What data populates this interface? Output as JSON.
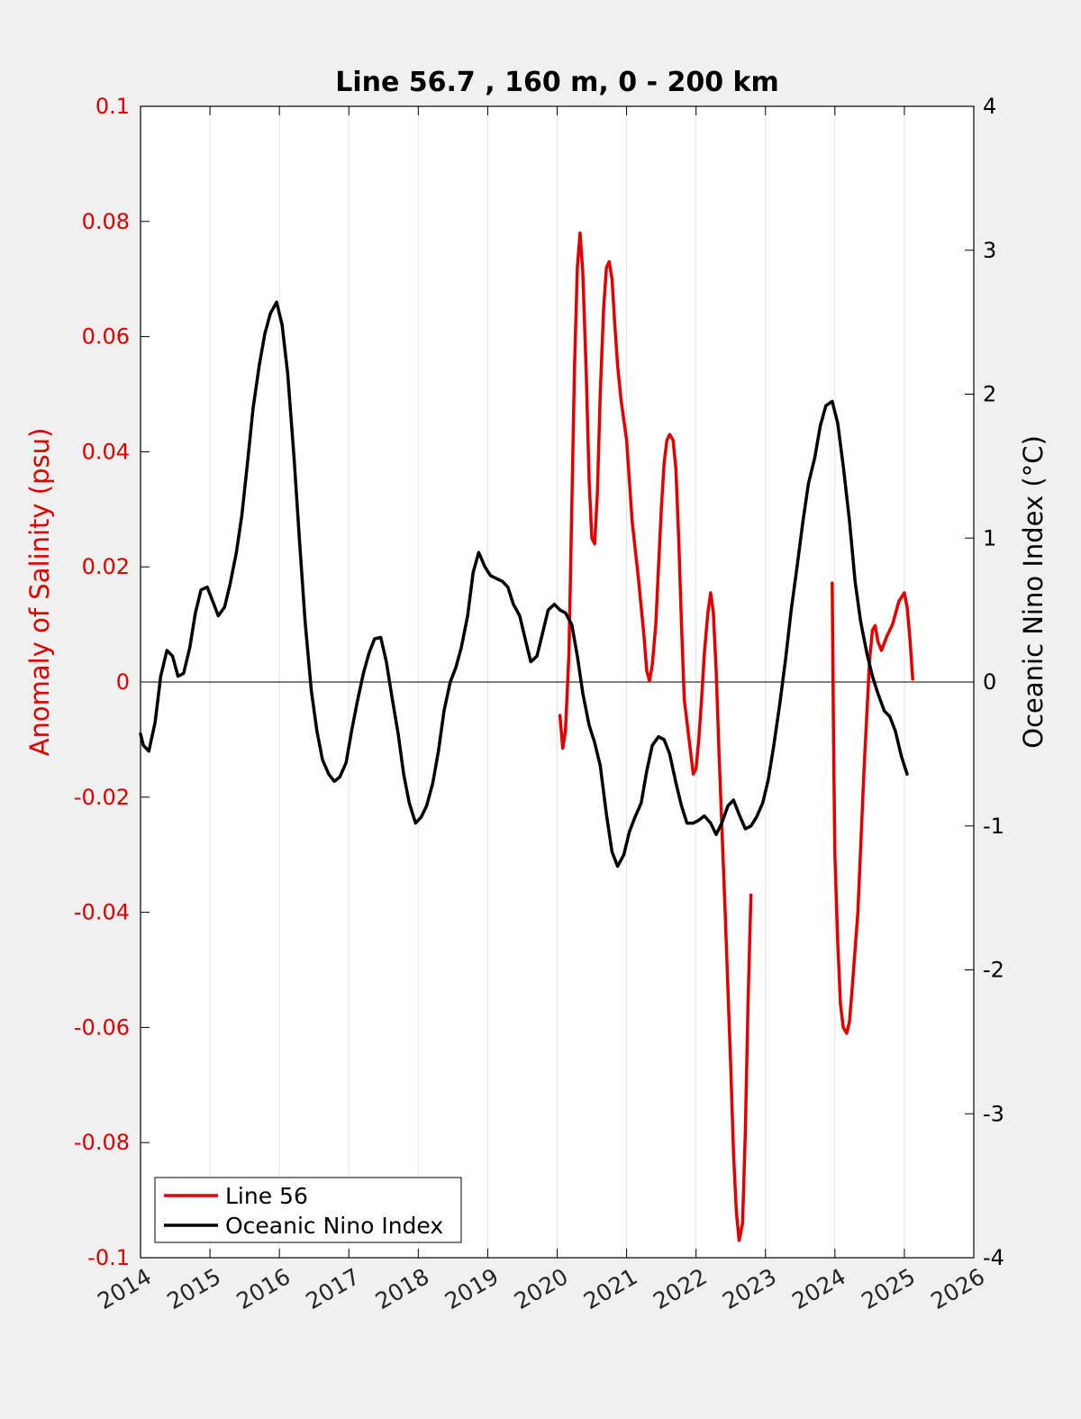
{
  "chart_data": {
    "type": "line",
    "title": "Line 56.7 , 160 m, 0 - 200 km",
    "xlim": [
      2014,
      2026
    ],
    "xticks": [
      2014,
      2015,
      2016,
      2017,
      2018,
      2019,
      2020,
      2021,
      2022,
      2023,
      2024,
      2025,
      2026
    ],
    "xtick_labels": [
      "2014",
      "2015",
      "2016",
      "2017",
      "2018",
      "2019",
      "2020",
      "2021",
      "2022",
      "2023",
      "2024",
      "2025",
      "2026"
    ],
    "ylabel_left": "Anomaly of Salinity (psu)",
    "ylim_left": [
      -0.1,
      0.1
    ],
    "yticks_left": [
      0.1,
      0.08,
      0.06,
      0.04,
      0.02,
      0,
      -0.02,
      -0.04,
      -0.06,
      -0.08,
      -0.1
    ],
    "ytick_labels_left": [
      "0.1",
      "0.08",
      "0.06",
      "0.04",
      "0.02",
      "0",
      "-0.02",
      "-0.04",
      "-0.06",
      "-0.08",
      "-0.1"
    ],
    "ylabel_right": "Oceanic Nino Index (°C)",
    "ylim_right": [
      -4,
      4
    ],
    "yticks_right": [
      4,
      3,
      2,
      1,
      0,
      -1,
      -2,
      -3,
      -4
    ],
    "ytick_labels_right": [
      "4",
      "3",
      "2",
      "1",
      "0",
      "-1",
      "-2",
      "-3",
      "-4"
    ],
    "x_grid": true,
    "y_grid": false,
    "zero_line": true,
    "legend_position": "bottom-left",
    "series": [
      {
        "name": "Line 56",
        "axis": "left",
        "color": "#e60000",
        "segments": [
          [
            [
              2020.04,
              -0.0058
            ],
            [
              2020.08,
              -0.0115
            ],
            [
              2020.12,
              -0.0085
            ],
            [
              2020.17,
              0.005
            ],
            [
              2020.21,
              0.03
            ],
            [
              2020.25,
              0.055
            ],
            [
              2020.29,
              0.072
            ],
            [
              2020.33,
              0.078
            ],
            [
              2020.37,
              0.071
            ],
            [
              2020.42,
              0.053
            ],
            [
              2020.46,
              0.035
            ],
            [
              2020.5,
              0.025
            ],
            [
              2020.54,
              0.024
            ],
            [
              2020.58,
              0.033
            ],
            [
              2020.62,
              0.05
            ],
            [
              2020.67,
              0.065
            ],
            [
              2020.71,
              0.072
            ],
            [
              2020.75,
              0.073
            ],
            [
              2020.79,
              0.07
            ],
            [
              2020.83,
              0.062
            ],
            [
              2020.87,
              0.055
            ],
            [
              2020.92,
              0.049
            ],
            [
              2021.0,
              0.042
            ],
            [
              2021.08,
              0.028
            ],
            [
              2021.17,
              0.018
            ],
            [
              2021.25,
              0.008
            ],
            [
              2021.29,
              0.002
            ],
            [
              2021.33,
              0.0002
            ],
            [
              2021.37,
              0.003
            ],
            [
              2021.42,
              0.01
            ],
            [
              2021.46,
              0.02
            ],
            [
              2021.5,
              0.03
            ],
            [
              2021.54,
              0.038
            ],
            [
              2021.58,
              0.042
            ],
            [
              2021.62,
              0.043
            ],
            [
              2021.67,
              0.042
            ],
            [
              2021.71,
              0.037
            ],
            [
              2021.75,
              0.025
            ],
            [
              2021.79,
              0.01
            ],
            [
              2021.83,
              -0.003
            ],
            [
              2021.92,
              -0.012
            ],
            [
              2021.96,
              -0.016
            ],
            [
              2022.0,
              -0.015
            ],
            [
              2022.04,
              -0.01
            ],
            [
              2022.08,
              -0.003
            ],
            [
              2022.12,
              0.005
            ],
            [
              2022.17,
              0.012
            ],
            [
              2022.21,
              0.0155
            ],
            [
              2022.25,
              0.012
            ],
            [
              2022.29,
              0.002
            ],
            [
              2022.33,
              -0.012
            ],
            [
              2022.42,
              -0.04
            ],
            [
              2022.5,
              -0.067
            ],
            [
              2022.54,
              -0.082
            ],
            [
              2022.58,
              -0.092
            ],
            [
              2022.62,
              -0.097
            ],
            [
              2022.67,
              -0.094
            ],
            [
              2022.71,
              -0.078
            ],
            [
              2022.75,
              -0.055
            ],
            [
              2022.79,
              -0.037
            ]
          ],
          [
            [
              2023.96,
              0.0172
            ],
            [
              2023.98,
              -0.01
            ],
            [
              2024.0,
              -0.03
            ],
            [
              2024.04,
              -0.045
            ],
            [
              2024.08,
              -0.056
            ],
            [
              2024.12,
              -0.06
            ],
            [
              2024.17,
              -0.061
            ],
            [
              2024.21,
              -0.059
            ],
            [
              2024.25,
              -0.053
            ],
            [
              2024.33,
              -0.04
            ],
            [
              2024.42,
              -0.015
            ],
            [
              2024.5,
              0.004
            ],
            [
              2024.54,
              0.009
            ],
            [
              2024.58,
              0.0098
            ],
            [
              2024.62,
              0.007
            ],
            [
              2024.67,
              0.0055
            ],
            [
              2024.75,
              0.008
            ],
            [
              2024.83,
              0.01
            ],
            [
              2024.92,
              0.014
            ],
            [
              2025.0,
              0.0155
            ],
            [
              2025.04,
              0.013
            ],
            [
              2025.08,
              0.0075
            ],
            [
              2025.12,
              0.0005
            ]
          ]
        ]
      },
      {
        "name": "Oceanic Nino Index",
        "axis": "right",
        "color": "#000000",
        "segments": [
          [
            [
              2014.0,
              -0.36
            ],
            [
              2014.04,
              -0.44
            ],
            [
              2014.12,
              -0.48
            ],
            [
              2014.21,
              -0.28
            ],
            [
              2014.29,
              0.04
            ],
            [
              2014.38,
              0.22
            ],
            [
              2014.46,
              0.18
            ],
            [
              2014.54,
              0.04
            ],
            [
              2014.62,
              0.06
            ],
            [
              2014.71,
              0.24
            ],
            [
              2014.79,
              0.48
            ],
            [
              2014.87,
              0.64
            ],
            [
              2014.96,
              0.66
            ],
            [
              2015.04,
              0.56
            ],
            [
              2015.12,
              0.46
            ],
            [
              2015.21,
              0.52
            ],
            [
              2015.29,
              0.68
            ],
            [
              2015.38,
              0.9
            ],
            [
              2015.46,
              1.16
            ],
            [
              2015.54,
              1.52
            ],
            [
              2015.62,
              1.9
            ],
            [
              2015.71,
              2.2
            ],
            [
              2015.79,
              2.42
            ],
            [
              2015.87,
              2.56
            ],
            [
              2015.96,
              2.64
            ],
            [
              2016.04,
              2.48
            ],
            [
              2016.12,
              2.14
            ],
            [
              2016.21,
              1.56
            ],
            [
              2016.29,
              0.98
            ],
            [
              2016.37,
              0.42
            ],
            [
              2016.46,
              -0.06
            ],
            [
              2016.54,
              -0.34
            ],
            [
              2016.62,
              -0.54
            ],
            [
              2016.71,
              -0.64
            ],
            [
              2016.79,
              -0.69
            ],
            [
              2016.87,
              -0.66
            ],
            [
              2016.96,
              -0.56
            ],
            [
              2017.04,
              -0.34
            ],
            [
              2017.12,
              -0.14
            ],
            [
              2017.21,
              0.06
            ],
            [
              2017.29,
              0.2
            ],
            [
              2017.37,
              0.3
            ],
            [
              2017.46,
              0.31
            ],
            [
              2017.54,
              0.14
            ],
            [
              2017.62,
              -0.1
            ],
            [
              2017.71,
              -0.36
            ],
            [
              2017.79,
              -0.64
            ],
            [
              2017.87,
              -0.84
            ],
            [
              2017.96,
              -0.98
            ],
            [
              2018.04,
              -0.94
            ],
            [
              2018.12,
              -0.86
            ],
            [
              2018.21,
              -0.7
            ],
            [
              2018.29,
              -0.48
            ],
            [
              2018.37,
              -0.2
            ],
            [
              2018.46,
              0.0
            ],
            [
              2018.54,
              0.1
            ],
            [
              2018.62,
              0.24
            ],
            [
              2018.71,
              0.46
            ],
            [
              2018.79,
              0.76
            ],
            [
              2018.87,
              0.9
            ],
            [
              2018.96,
              0.8
            ],
            [
              2019.04,
              0.74
            ],
            [
              2019.12,
              0.72
            ],
            [
              2019.21,
              0.7
            ],
            [
              2019.29,
              0.66
            ],
            [
              2019.37,
              0.54
            ],
            [
              2019.46,
              0.46
            ],
            [
              2019.54,
              0.3
            ],
            [
              2019.62,
              0.14
            ],
            [
              2019.71,
              0.18
            ],
            [
              2019.79,
              0.34
            ],
            [
              2019.87,
              0.5
            ],
            [
              2019.96,
              0.54
            ],
            [
              2020.04,
              0.5
            ],
            [
              2020.12,
              0.48
            ],
            [
              2020.21,
              0.4
            ],
            [
              2020.29,
              0.18
            ],
            [
              2020.37,
              -0.08
            ],
            [
              2020.46,
              -0.3
            ],
            [
              2020.54,
              -0.42
            ],
            [
              2020.62,
              -0.58
            ],
            [
              2020.71,
              -0.92
            ],
            [
              2020.79,
              -1.18
            ],
            [
              2020.87,
              -1.28
            ],
            [
              2020.96,
              -1.2
            ],
            [
              2021.04,
              -1.04
            ],
            [
              2021.12,
              -0.94
            ],
            [
              2021.21,
              -0.84
            ],
            [
              2021.29,
              -0.62
            ],
            [
              2021.37,
              -0.44
            ],
            [
              2021.46,
              -0.38
            ],
            [
              2021.54,
              -0.4
            ],
            [
              2021.62,
              -0.5
            ],
            [
              2021.71,
              -0.7
            ],
            [
              2021.79,
              -0.86
            ],
            [
              2021.87,
              -0.98
            ],
            [
              2021.96,
              -0.98
            ],
            [
              2022.04,
              -0.96
            ],
            [
              2022.12,
              -0.93
            ],
            [
              2022.21,
              -0.98
            ],
            [
              2022.29,
              -1.06
            ],
            [
              2022.37,
              -0.98
            ],
            [
              2022.46,
              -0.86
            ],
            [
              2022.54,
              -0.82
            ],
            [
              2022.62,
              -0.92
            ],
            [
              2022.71,
              -1.02
            ],
            [
              2022.79,
              -1.0
            ],
            [
              2022.87,
              -0.94
            ],
            [
              2022.96,
              -0.84
            ],
            [
              2023.04,
              -0.68
            ],
            [
              2023.12,
              -0.44
            ],
            [
              2023.21,
              -0.14
            ],
            [
              2023.29,
              0.16
            ],
            [
              2023.37,
              0.5
            ],
            [
              2023.46,
              0.82
            ],
            [
              2023.54,
              1.12
            ],
            [
              2023.62,
              1.38
            ],
            [
              2023.71,
              1.56
            ],
            [
              2023.79,
              1.78
            ],
            [
              2023.87,
              1.92
            ],
            [
              2023.96,
              1.95
            ],
            [
              2024.04,
              1.8
            ],
            [
              2024.12,
              1.5
            ],
            [
              2024.21,
              1.12
            ],
            [
              2024.29,
              0.7
            ],
            [
              2024.37,
              0.42
            ],
            [
              2024.46,
              0.2
            ],
            [
              2024.54,
              0.04
            ],
            [
              2024.62,
              -0.08
            ],
            [
              2024.71,
              -0.2
            ],
            [
              2024.79,
              -0.24
            ],
            [
              2024.87,
              -0.34
            ],
            [
              2024.96,
              -0.52
            ],
            [
              2025.04,
              -0.64
            ]
          ]
        ]
      }
    ]
  }
}
